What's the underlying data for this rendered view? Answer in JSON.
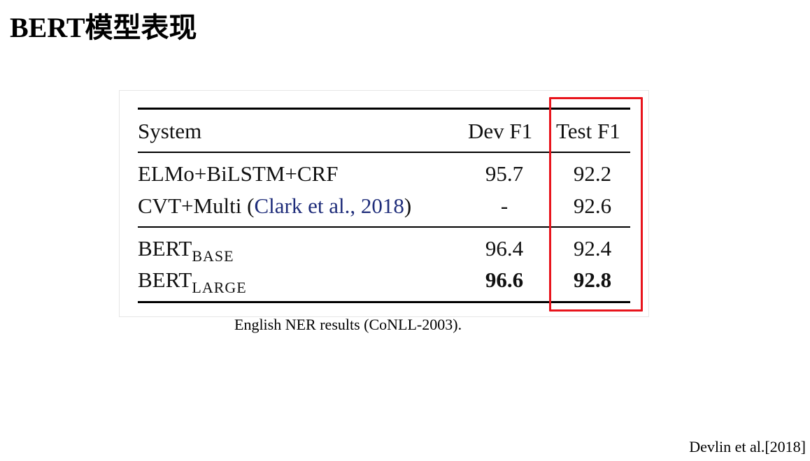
{
  "slide": {
    "title": "BERT模型表现",
    "caption": "English NER results (CoNLL-2003).",
    "source": "Devlin et al.[2018]"
  },
  "table": {
    "headers": [
      "System",
      "Dev F1",
      "Test F1"
    ],
    "rows": [
      {
        "system": "ELMo+BiLSTM+CRF",
        "dev": "95.7",
        "test": "92.2"
      },
      {
        "system_prefix": "CVT+Multi (",
        "citation": "Clark et al., 2018",
        "system_suffix": ")",
        "dev": "-",
        "test": "92.6"
      },
      {
        "system": "BERT",
        "subscript": "BASE",
        "dev": "96.4",
        "test": "92.4"
      },
      {
        "system": "BERT",
        "subscript": "LARGE",
        "dev": "96.6",
        "test": "92.8",
        "bold": true
      }
    ]
  },
  "colors": {
    "highlight": "#e8141c",
    "citation": "#1f2d7a"
  }
}
